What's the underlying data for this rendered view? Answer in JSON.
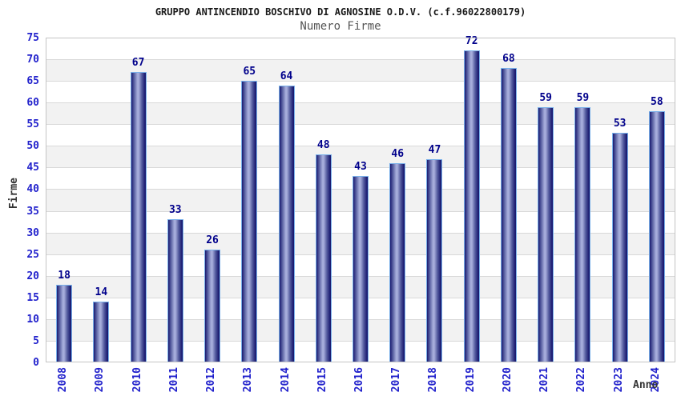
{
  "chart_data": {
    "type": "bar",
    "title": "GRUPPO ANTINCENDIO BOSCHIVO DI AGNOSINE O.D.V. (c.f.96022800179)",
    "subtitle": "Numero Firme",
    "xlabel": "Anno",
    "ylabel": "Firme",
    "categories": [
      "2008",
      "2009",
      "2010",
      "2011",
      "2012",
      "2013",
      "2014",
      "2015",
      "2016",
      "2017",
      "2018",
      "2019",
      "2020",
      "2021",
      "2022",
      "2023",
      "2024"
    ],
    "values": [
      18,
      14,
      67,
      33,
      26,
      65,
      64,
      48,
      43,
      46,
      47,
      72,
      68,
      59,
      59,
      53,
      58
    ],
    "ylim": [
      0,
      75
    ],
    "ytick_step": 5,
    "grid": true,
    "legend": false,
    "bar_value_labels": true,
    "band_fill_alternating": true,
    "colors": {
      "bar_dark": "#1a1a70",
      "bar_mid": "#555c9f",
      "bar_light": "#a6addb",
      "bar_border": "#79b0ea",
      "tick_label": "#2222cc",
      "value_label": "#00008b",
      "band_gray": "#f2f2f2",
      "band_white": "#ffffff",
      "gridline": "#d9d9d9",
      "plot_border": "#c4c4c4",
      "title_color": "#1a1a1a",
      "subtitle_color": "#555555",
      "axis_title_color": "#333333"
    }
  }
}
